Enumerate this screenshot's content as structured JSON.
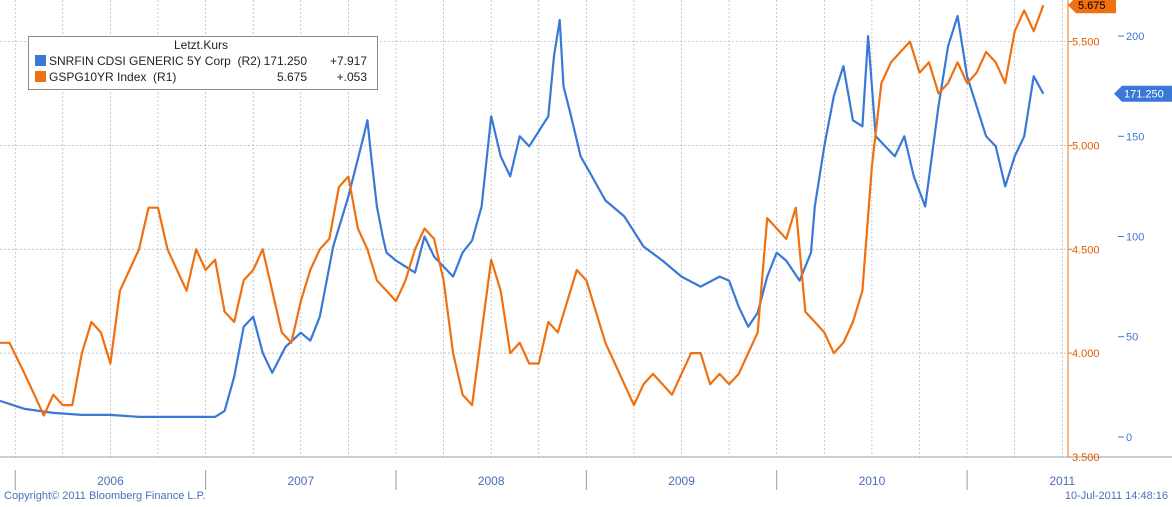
{
  "chart_data": {
    "type": "line",
    "legend_header": "Letzt.Kurs",
    "legend_position": "top-left",
    "grid": true,
    "x_range": [
      2005.92,
      2011.53
    ],
    "x_ticks": [
      {
        "label": "2006",
        "year": 2006
      },
      {
        "label": "2007",
        "year": 2007
      },
      {
        "label": "2008",
        "year": 2008
      },
      {
        "label": "2009",
        "year": 2009
      },
      {
        "label": "2010",
        "year": 2010
      },
      {
        "label": "2011",
        "year": 2011
      }
    ],
    "left_axis_ticks": [
      "5.675",
      "5.500",
      "5.000",
      "4.500",
      "4.000",
      "3.500"
    ],
    "right_axis_ticks": [
      "200",
      "150",
      "100",
      "50",
      "0"
    ],
    "axis_left": {
      "min": 3.5,
      "max": 5.7
    },
    "axis_right": {
      "min": -10,
      "max": 218
    },
    "series": [
      {
        "name": "SNRFIN CDSI GENERIC 5Y Corp  (R2)",
        "axis": "right",
        "color": "#3a78d8",
        "last": "171.250",
        "change": "+7.917",
        "last_label": "171.250",
        "x": [
          2005.92,
          2006.05,
          2006.2,
          2006.35,
          2006.5,
          2006.65,
          2006.8,
          2006.95,
          2007.05,
          2007.1,
          2007.15,
          2007.2,
          2007.25,
          2007.3,
          2007.35,
          2007.42,
          2007.5,
          2007.55,
          2007.6,
          2007.67,
          2007.75,
          2007.83,
          2007.85,
          2007.87,
          2007.9,
          2007.93,
          2007.95,
          2008.0,
          2008.1,
          2008.15,
          2008.2,
          2008.25,
          2008.3,
          2008.35,
          2008.4,
          2008.45,
          2008.5,
          2008.55,
          2008.6,
          2008.65,
          2008.7,
          2008.8,
          2008.83,
          2008.86,
          2008.88,
          2008.92,
          2008.97,
          2009.0,
          2009.1,
          2009.2,
          2009.3,
          2009.4,
          2009.5,
          2009.6,
          2009.7,
          2009.75,
          2009.8,
          2009.85,
          2009.9,
          2009.95,
          2010.0,
          2010.05,
          2010.12,
          2010.18,
          2010.2,
          2010.25,
          2010.3,
          2010.35,
          2010.4,
          2010.45,
          2010.48,
          2010.52,
          2010.57,
          2010.62,
          2010.67,
          2010.72,
          2010.78,
          2010.85,
          2010.9,
          2010.95,
          2011.0,
          2011.05,
          2011.1,
          2011.15,
          2011.2,
          2011.25,
          2011.3,
          2011.35,
          2011.4
        ],
        "values": [
          18,
          14,
          12,
          11,
          11,
          10,
          10,
          10,
          10,
          13,
          30,
          55,
          60,
          42,
          32,
          45,
          52,
          48,
          60,
          95,
          120,
          150,
          158,
          140,
          115,
          100,
          92,
          88,
          82,
          100,
          90,
          85,
          80,
          92,
          98,
          115,
          160,
          140,
          130,
          150,
          145,
          160,
          190,
          208,
          175,
          160,
          140,
          135,
          118,
          110,
          95,
          88,
          80,
          75,
          80,
          78,
          65,
          55,
          62,
          80,
          92,
          88,
          78,
          92,
          115,
          145,
          170,
          185,
          158,
          155,
          200,
          150,
          145,
          140,
          150,
          130,
          115,
          165,
          195,
          210,
          180,
          165,
          150,
          145,
          125,
          140,
          150,
          180,
          171.25
        ]
      },
      {
        "name": "GSPG10YR Index  (R1)",
        "axis": "left",
        "color": "#f07010",
        "last": "5.675",
        "change": "+.053",
        "last_label": "5.675",
        "x": [
          2005.92,
          2005.97,
          2006.05,
          2006.1,
          2006.15,
          2006.2,
          2006.25,
          2006.3,
          2006.35,
          2006.4,
          2006.45,
          2006.5,
          2006.55,
          2006.6,
          2006.65,
          2006.7,
          2006.75,
          2006.8,
          2006.85,
          2006.9,
          2006.95,
          2007.0,
          2007.05,
          2007.1,
          2007.15,
          2007.2,
          2007.25,
          2007.3,
          2007.35,
          2007.4,
          2007.45,
          2007.5,
          2007.55,
          2007.6,
          2007.65,
          2007.7,
          2007.75,
          2007.8,
          2007.85,
          2007.9,
          2007.95,
          2008.0,
          2008.05,
          2008.1,
          2008.15,
          2008.2,
          2008.25,
          2008.3,
          2008.35,
          2008.4,
          2008.45,
          2008.5,
          2008.55,
          2008.6,
          2008.65,
          2008.7,
          2008.75,
          2008.8,
          2008.85,
          2008.9,
          2008.95,
          2009.0,
          2009.05,
          2009.1,
          2009.15,
          2009.2,
          2009.25,
          2009.3,
          2009.35,
          2009.4,
          2009.45,
          2009.5,
          2009.55,
          2009.6,
          2009.65,
          2009.7,
          2009.75,
          2009.8,
          2009.85,
          2009.9,
          2009.95,
          2010.0,
          2010.05,
          2010.1,
          2010.15,
          2010.2,
          2010.25,
          2010.3,
          2010.35,
          2010.4,
          2010.45,
          2010.5,
          2010.55,
          2010.6,
          2010.65,
          2010.7,
          2010.75,
          2010.8,
          2010.85,
          2010.9,
          2010.95,
          2011.0,
          2011.05,
          2011.1,
          2011.15,
          2011.2,
          2011.25,
          2011.3,
          2011.35,
          2011.4
        ],
        "values": [
          4.05,
          4.05,
          3.9,
          3.8,
          3.7,
          3.8,
          3.75,
          3.75,
          4.0,
          4.15,
          4.1,
          3.95,
          4.3,
          4.4,
          4.5,
          4.7,
          4.7,
          4.5,
          4.4,
          4.3,
          4.5,
          4.4,
          4.45,
          4.2,
          4.15,
          4.35,
          4.4,
          4.5,
          4.3,
          4.1,
          4.05,
          4.25,
          4.4,
          4.5,
          4.55,
          4.8,
          4.85,
          4.6,
          4.5,
          4.35,
          4.3,
          4.25,
          4.35,
          4.5,
          4.6,
          4.55,
          4.35,
          4.0,
          3.8,
          3.75,
          4.1,
          4.45,
          4.3,
          4.0,
          4.05,
          3.95,
          3.95,
          4.15,
          4.1,
          4.25,
          4.4,
          4.35,
          4.2,
          4.05,
          3.95,
          3.85,
          3.75,
          3.85,
          3.9,
          3.85,
          3.8,
          3.9,
          4.0,
          4.0,
          3.85,
          3.9,
          3.85,
          3.9,
          4.0,
          4.1,
          4.65,
          4.6,
          4.55,
          4.7,
          4.2,
          4.15,
          4.1,
          4.0,
          4.05,
          4.15,
          4.3,
          4.9,
          5.3,
          5.4,
          5.45,
          5.5,
          5.35,
          5.4,
          5.25,
          5.3,
          5.4,
          5.3,
          5.35,
          5.45,
          5.4,
          5.3,
          5.55,
          5.65,
          5.55,
          5.675
        ]
      }
    ]
  },
  "footer": {
    "copyright": "Copyright© 2011 Bloomberg Finance L.P.",
    "timestamp": "10-Jul-2011 14:48:16"
  }
}
